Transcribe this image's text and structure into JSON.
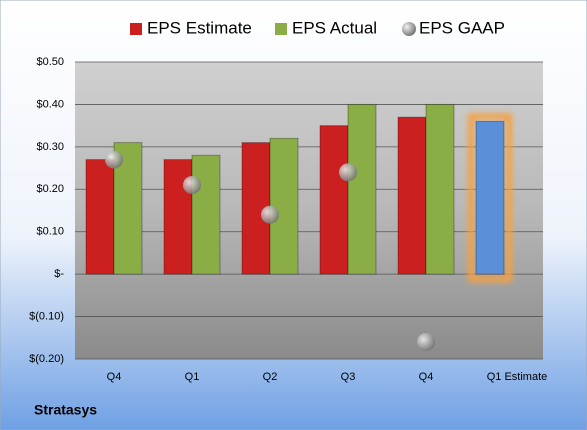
{
  "chart_data": {
    "type": "bar",
    "categories": [
      "Q4",
      "Q1",
      "Q2",
      "Q3",
      "Q4",
      "Q1 Estimate"
    ],
    "series": [
      {
        "name": "EPS Estimate",
        "color": "#cc2020",
        "values": [
          0.27,
          0.27,
          0.31,
          0.35,
          0.37,
          0.36
        ],
        "point_colors": [
          null,
          null,
          null,
          null,
          null,
          "#5b8fd8"
        ]
      },
      {
        "name": "EPS Actual",
        "color": "#8aad45",
        "values": [
          0.31,
          0.28,
          0.32,
          0.4,
          0.4,
          null
        ]
      },
      {
        "name": "EPS GAAP",
        "color": "#a8a8a8",
        "marker": "circle",
        "values": [
          0.27,
          0.21,
          0.14,
          0.24,
          -0.16,
          null
        ]
      }
    ],
    "ylim": [
      -0.2,
      0.5
    ],
    "yticks": [
      {
        "value": -0.2,
        "label": "$(0.20)"
      },
      {
        "value": -0.1,
        "label": "$(0.10)"
      },
      {
        "value": 0,
        "label": "$-"
      },
      {
        "value": 0.1,
        "label": "$0.10"
      },
      {
        "value": 0.2,
        "label": "$0.20"
      },
      {
        "value": 0.3,
        "label": "$0.30"
      },
      {
        "value": 0.4,
        "label": "$0.40"
      },
      {
        "value": 0.5,
        "label": "$0.50"
      }
    ],
    "grid": true,
    "legend": "top",
    "source": "Stratasys"
  }
}
